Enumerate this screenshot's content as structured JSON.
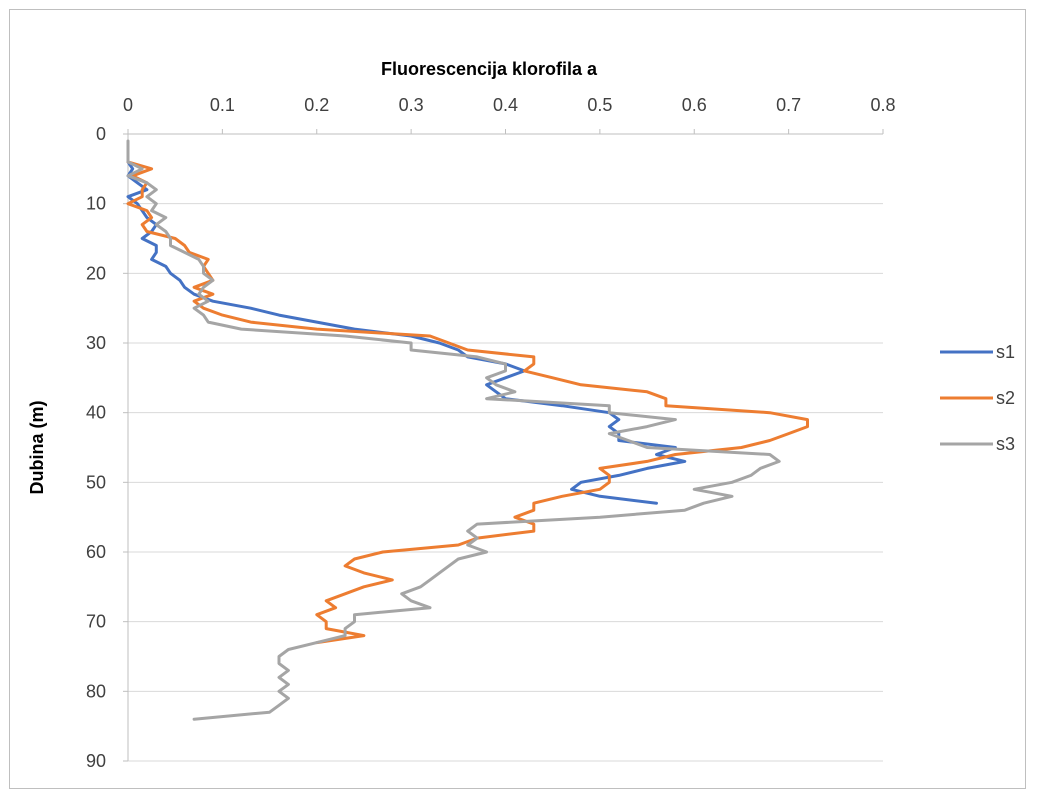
{
  "chart_data": {
    "type": "line",
    "title": "",
    "xlabel": "Fluorescencija klorofila a",
    "ylabel": "Dubina (m)",
    "xlim": [
      0,
      0.8
    ],
    "ylim": [
      0,
      90
    ],
    "x_ticks": [
      "0",
      "0.1",
      "0.2",
      "0.3",
      "0.4",
      "0.5",
      "0.6",
      "0.7",
      "0.8"
    ],
    "y_ticks": [
      "0",
      "10",
      "20",
      "30",
      "40",
      "50",
      "60",
      "70",
      "80",
      "90"
    ],
    "x_axis_position": "top",
    "y_axis_inverted": true,
    "grid": "horizontal",
    "legend": "right",
    "series": [
      {
        "name": "s1",
        "color": "#4472C4",
        "points": [
          [
            0.0,
            4
          ],
          [
            0.005,
            5
          ],
          [
            0.0,
            6
          ],
          [
            0.01,
            7
          ],
          [
            0.02,
            8
          ],
          [
            0.0,
            9
          ],
          [
            0.01,
            10
          ],
          [
            0.015,
            11
          ],
          [
            0.02,
            12
          ],
          [
            0.03,
            13
          ],
          [
            0.025,
            14
          ],
          [
            0.015,
            15
          ],
          [
            0.03,
            16
          ],
          [
            0.03,
            17
          ],
          [
            0.025,
            18
          ],
          [
            0.04,
            19
          ],
          [
            0.045,
            20
          ],
          [
            0.055,
            21
          ],
          [
            0.06,
            22
          ],
          [
            0.07,
            23
          ],
          [
            0.09,
            24
          ],
          [
            0.13,
            25
          ],
          [
            0.16,
            26
          ],
          [
            0.2,
            27
          ],
          [
            0.24,
            28
          ],
          [
            0.3,
            29
          ],
          [
            0.33,
            30
          ],
          [
            0.35,
            31
          ],
          [
            0.36,
            32
          ],
          [
            0.4,
            33
          ],
          [
            0.42,
            34
          ],
          [
            0.4,
            35
          ],
          [
            0.38,
            36
          ],
          [
            0.39,
            37
          ],
          [
            0.4,
            38
          ],
          [
            0.46,
            39
          ],
          [
            0.51,
            40
          ],
          [
            0.52,
            41
          ],
          [
            0.51,
            42
          ],
          [
            0.52,
            43
          ],
          [
            0.52,
            44
          ],
          [
            0.58,
            45
          ],
          [
            0.56,
            46
          ],
          [
            0.59,
            47
          ],
          [
            0.55,
            48
          ],
          [
            0.52,
            49
          ],
          [
            0.48,
            50
          ],
          [
            0.47,
            51
          ],
          [
            0.5,
            52
          ],
          [
            0.56,
            53
          ]
        ]
      },
      {
        "name": "s2",
        "color": "#ED7D31",
        "points": [
          [
            0.0,
            4
          ],
          [
            0.025,
            5
          ],
          [
            0.005,
            6
          ],
          [
            0.02,
            7
          ],
          [
            0.015,
            8
          ],
          [
            0.015,
            9
          ],
          [
            0.0,
            10
          ],
          [
            0.02,
            11
          ],
          [
            0.025,
            12
          ],
          [
            0.015,
            13
          ],
          [
            0.02,
            14
          ],
          [
            0.05,
            15
          ],
          [
            0.06,
            16
          ],
          [
            0.065,
            17
          ],
          [
            0.085,
            18
          ],
          [
            0.08,
            19
          ],
          [
            0.085,
            20
          ],
          [
            0.09,
            21
          ],
          [
            0.07,
            22
          ],
          [
            0.09,
            23
          ],
          [
            0.07,
            24
          ],
          [
            0.08,
            25
          ],
          [
            0.1,
            26
          ],
          [
            0.13,
            27
          ],
          [
            0.2,
            28
          ],
          [
            0.32,
            29
          ],
          [
            0.34,
            30
          ],
          [
            0.36,
            31
          ],
          [
            0.43,
            32
          ],
          [
            0.43,
            33
          ],
          [
            0.42,
            34
          ],
          [
            0.45,
            35
          ],
          [
            0.48,
            36
          ],
          [
            0.55,
            37
          ],
          [
            0.57,
            38
          ],
          [
            0.57,
            39
          ],
          [
            0.68,
            40
          ],
          [
            0.72,
            41
          ],
          [
            0.72,
            42
          ],
          [
            0.7,
            43
          ],
          [
            0.68,
            44
          ],
          [
            0.65,
            45
          ],
          [
            0.58,
            46
          ],
          [
            0.55,
            47
          ],
          [
            0.5,
            48
          ],
          [
            0.51,
            49
          ],
          [
            0.51,
            50
          ],
          [
            0.5,
            51
          ],
          [
            0.46,
            52
          ],
          [
            0.43,
            53
          ],
          [
            0.43,
            54
          ],
          [
            0.41,
            55
          ],
          [
            0.43,
            56
          ],
          [
            0.43,
            57
          ],
          [
            0.37,
            58
          ],
          [
            0.35,
            59
          ],
          [
            0.27,
            60
          ],
          [
            0.24,
            61
          ],
          [
            0.23,
            62
          ],
          [
            0.25,
            63
          ],
          [
            0.28,
            64
          ],
          [
            0.25,
            65
          ],
          [
            0.23,
            66
          ],
          [
            0.21,
            67
          ],
          [
            0.22,
            68
          ],
          [
            0.2,
            69
          ],
          [
            0.21,
            70
          ],
          [
            0.21,
            71
          ],
          [
            0.25,
            72
          ],
          [
            0.2,
            73
          ]
        ]
      },
      {
        "name": "s3",
        "color": "#A5A5A5",
        "points": [
          [
            0.0,
            1
          ],
          [
            0.0,
            4
          ],
          [
            0.015,
            5
          ],
          [
            0.0,
            6
          ],
          [
            0.02,
            7
          ],
          [
            0.03,
            8
          ],
          [
            0.02,
            9
          ],
          [
            0.03,
            10
          ],
          [
            0.025,
            11
          ],
          [
            0.04,
            12
          ],
          [
            0.03,
            13
          ],
          [
            0.04,
            14
          ],
          [
            0.045,
            15
          ],
          [
            0.045,
            16
          ],
          [
            0.06,
            17
          ],
          [
            0.075,
            18
          ],
          [
            0.08,
            19
          ],
          [
            0.08,
            20
          ],
          [
            0.09,
            21
          ],
          [
            0.08,
            22
          ],
          [
            0.075,
            23
          ],
          [
            0.085,
            24
          ],
          [
            0.07,
            25
          ],
          [
            0.08,
            26
          ],
          [
            0.085,
            27
          ],
          [
            0.12,
            28
          ],
          [
            0.23,
            29
          ],
          [
            0.3,
            30
          ],
          [
            0.3,
            31
          ],
          [
            0.37,
            32
          ],
          [
            0.4,
            33
          ],
          [
            0.4,
            34
          ],
          [
            0.38,
            35
          ],
          [
            0.39,
            36
          ],
          [
            0.41,
            37
          ],
          [
            0.38,
            38
          ],
          [
            0.51,
            39
          ],
          [
            0.51,
            40
          ],
          [
            0.58,
            41
          ],
          [
            0.55,
            42
          ],
          [
            0.51,
            43
          ],
          [
            0.53,
            44
          ],
          [
            0.55,
            45
          ],
          [
            0.68,
            46
          ],
          [
            0.69,
            47
          ],
          [
            0.67,
            48
          ],
          [
            0.66,
            49
          ],
          [
            0.64,
            50
          ],
          [
            0.6,
            51
          ],
          [
            0.64,
            52
          ],
          [
            0.61,
            53
          ],
          [
            0.59,
            54
          ],
          [
            0.5,
            55
          ],
          [
            0.37,
            56
          ],
          [
            0.36,
            57
          ],
          [
            0.37,
            58
          ],
          [
            0.36,
            59
          ],
          [
            0.38,
            60
          ],
          [
            0.35,
            61
          ],
          [
            0.34,
            62
          ],
          [
            0.33,
            63
          ],
          [
            0.32,
            64
          ],
          [
            0.31,
            65
          ],
          [
            0.29,
            66
          ],
          [
            0.3,
            67
          ],
          [
            0.32,
            68
          ],
          [
            0.24,
            69
          ],
          [
            0.24,
            70
          ],
          [
            0.23,
            71
          ],
          [
            0.23,
            72
          ],
          [
            0.2,
            73
          ],
          [
            0.17,
            74
          ],
          [
            0.16,
            75
          ],
          [
            0.16,
            76
          ],
          [
            0.17,
            77
          ],
          [
            0.16,
            78
          ],
          [
            0.17,
            79
          ],
          [
            0.16,
            80
          ],
          [
            0.17,
            81
          ],
          [
            0.16,
            82
          ],
          [
            0.15,
            83
          ],
          [
            0.07,
            84
          ]
        ]
      }
    ]
  }
}
